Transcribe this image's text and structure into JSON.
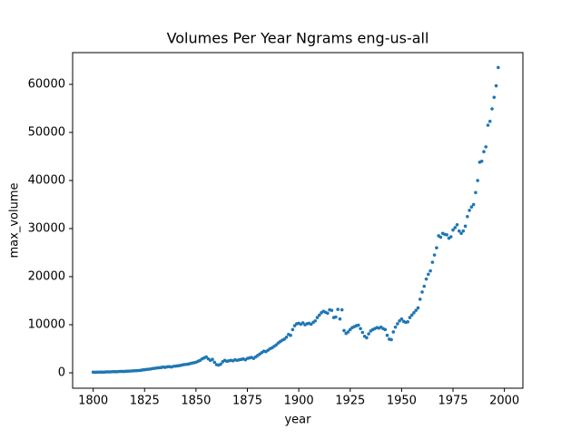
{
  "chart_data": {
    "type": "scatter",
    "title": "Volumes Per Year Ngrams eng-us-all",
    "x_label": "year",
    "y_label": "max_volume",
    "color": "#1f77b4",
    "x": [
      1800,
      1801,
      1802,
      1803,
      1804,
      1805,
      1806,
      1807,
      1808,
      1809,
      1810,
      1811,
      1812,
      1813,
      1814,
      1815,
      1816,
      1817,
      1818,
      1819,
      1820,
      1821,
      1822,
      1823,
      1824,
      1825,
      1826,
      1827,
      1828,
      1829,
      1830,
      1831,
      1832,
      1833,
      1834,
      1835,
      1836,
      1837,
      1838,
      1839,
      1840,
      1841,
      1842,
      1843,
      1844,
      1845,
      1846,
      1847,
      1848,
      1849,
      1850,
      1851,
      1852,
      1853,
      1854,
      1855,
      1856,
      1857,
      1858,
      1859,
      1860,
      1861,
      1862,
      1863,
      1864,
      1865,
      1866,
      1867,
      1868,
      1869,
      1870,
      1871,
      1872,
      1873,
      1874,
      1875,
      1876,
      1877,
      1878,
      1879,
      1880,
      1881,
      1882,
      1883,
      1884,
      1885,
      1886,
      1887,
      1888,
      1889,
      1890,
      1891,
      1892,
      1893,
      1894,
      1895,
      1896,
      1897,
      1898,
      1899,
      1900,
      1901,
      1902,
      1903,
      1904,
      1905,
      1906,
      1907,
      1908,
      1909,
      1910,
      1911,
      1912,
      1913,
      1914,
      1915,
      1916,
      1917,
      1918,
      1919,
      1920,
      1921,
      1922,
      1923,
      1924,
      1925,
      1926,
      1927,
      1928,
      1929,
      1930,
      1931,
      1932,
      1933,
      1934,
      1935,
      1936,
      1937,
      1938,
      1939,
      1940,
      1941,
      1942,
      1943,
      1944,
      1945,
      1946,
      1947,
      1948,
      1949,
      1950,
      1951,
      1952,
      1953,
      1954,
      1955,
      1956,
      1957,
      1958,
      1959,
      1960,
      1961,
      1962,
      1963,
      1964,
      1965,
      1966,
      1967,
      1968,
      1969,
      1970,
      1971,
      1972,
      1973,
      1974,
      1975,
      1976,
      1977,
      1978,
      1979,
      1980,
      1981,
      1982,
      1983,
      1984,
      1985,
      1986,
      1987,
      1988,
      1989,
      1990,
      1991,
      1992,
      1993,
      1994,
      1995,
      1996,
      1997
    ],
    "values": [
      150,
      120,
      130,
      140,
      160,
      150,
      180,
      200,
      190,
      220,
      250,
      230,
      260,
      280,
      300,
      270,
      320,
      340,
      360,
      400,
      420,
      450,
      480,
      520,
      600,
      650,
      700,
      750,
      800,
      900,
      950,
      1000,
      1050,
      1100,
      1200,
      1150,
      1250,
      1300,
      1200,
      1350,
      1400,
      1450,
      1500,
      1600,
      1700,
      1750,
      1800,
      1900,
      2000,
      2100,
      2200,
      2400,
      2600,
      2900,
      3100,
      3300,
      2900,
      2600,
      2800,
      2200,
      1700,
      1600,
      1800,
      2300,
      2600,
      2400,
      2500,
      2600,
      2500,
      2700,
      2600,
      2700,
      2800,
      2900,
      2700,
      3000,
      3100,
      3200,
      3000,
      3300,
      3600,
      3900,
      4200,
      4500,
      4400,
      4700,
      5000,
      5200,
      5500,
      5800,
      6200,
      6500,
      6800,
      7000,
      7400,
      8000,
      7800,
      9000,
      9800,
      10200,
      10300,
      10100,
      10400,
      10000,
      10200,
      10300,
      10100,
      10500,
      10800,
      11500,
      12000,
      12500,
      12800,
      12600,
      12400,
      13100,
      13000,
      11500,
      11600,
      13200,
      11200,
      13100,
      8800,
      8200,
      8500,
      9000,
      9400,
      9600,
      9800,
      9900,
      9200,
      8400,
      7600,
      7300,
      8100,
      8700,
      9000,
      9200,
      9400,
      9300,
      9500,
      9200,
      9000,
      7800,
      7000,
      6900,
      8500,
      9500,
      10200,
      10800,
      11200,
      10700,
      10500,
      10600,
      11500,
      12000,
      12500,
      13000,
      13500,
      15300,
      16800,
      18000,
      19500,
      20500,
      21200,
      23000,
      24500,
      26000,
      28500,
      28200,
      29000,
      28800,
      28700,
      28000,
      28300,
      29700,
      30200,
      30800,
      29500,
      29000,
      29500,
      30500,
      32500,
      33800,
      34500,
      35000,
      37500,
      40000,
      43800,
      44000,
      46000,
      47000,
      51500,
      52300,
      54900,
      57300,
      59700,
      63500
    ],
    "xlim": [
      1790,
      2009
    ],
    "ylim": [
      -3200,
      66600
    ],
    "xticks": [
      1800,
      1825,
      1850,
      1875,
      1900,
      1925,
      1950,
      1975,
      2000
    ],
    "yticks": [
      0,
      10000,
      20000,
      30000,
      40000,
      50000,
      60000
    ]
  }
}
